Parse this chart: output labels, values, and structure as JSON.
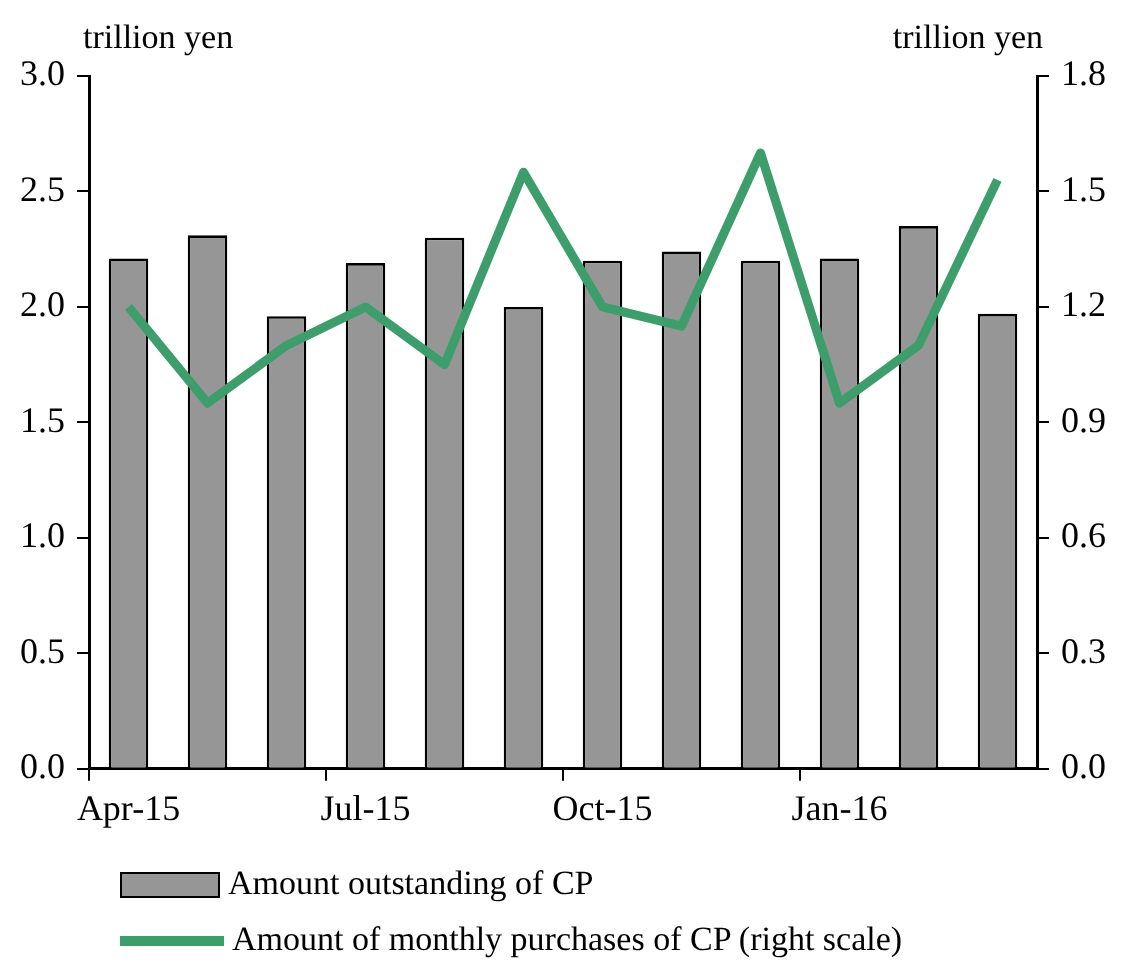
{
  "chart_data": {
    "type": "bar",
    "ylabel": "trillion yen",
    "y2label": "trillion yen",
    "categories": [
      "Apr-15",
      null,
      null,
      "Jul-15",
      null,
      null,
      "Oct-15",
      null,
      null,
      "Jan-16",
      null,
      null
    ],
    "series": [
      {
        "name": "Amount outstanding of CP",
        "color": "#969696",
        "values": [
          2.21,
          2.31,
          1.96,
          2.19,
          2.3,
          2.0,
          2.2,
          2.24,
          2.2,
          2.21,
          2.35,
          1.97
        ]
      },
      {
        "name": "Amount of monthly purchases of CP (right scale)",
        "type": "line",
        "axis": "y2",
        "color": "#3d9e6b",
        "values": [
          1.2,
          0.95,
          1.1,
          1.2,
          1.05,
          1.55,
          1.2,
          1.15,
          1.6,
          0.95,
          1.1,
          1.53
        ]
      }
    ],
    "ylim": [
      0,
      3
    ],
    "yticks": [
      {
        "value": 0,
        "label": "0.0"
      },
      0.5,
      {
        "value": 1,
        "label": "1.0"
      },
      1.5,
      {
        "value": 2,
        "label": "2.0"
      },
      2.5,
      {
        "value": 3,
        "label": "3.0"
      }
    ],
    "y2lim": [
      0,
      1.8
    ],
    "y2ticks": [
      {
        "value": 0,
        "label": "0.0"
      },
      0.3,
      0.6,
      0.9,
      1.2,
      1.5,
      1.8
    ],
    "grid": false,
    "legend": "bottom",
    "marker": "none",
    "line_style": "solid"
  }
}
